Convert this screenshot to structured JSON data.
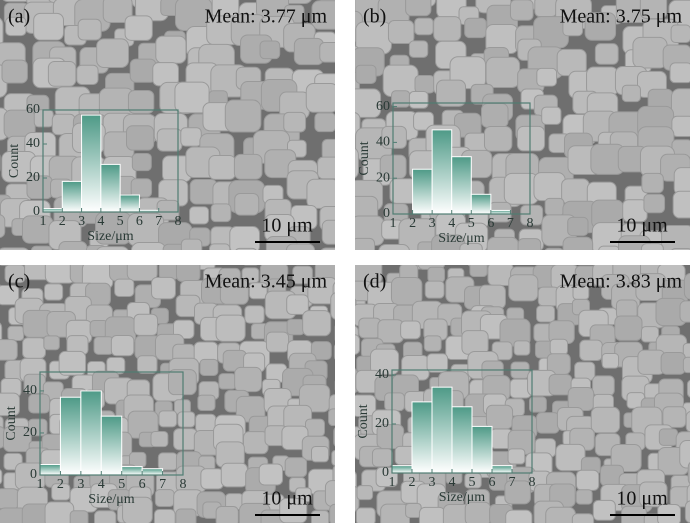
{
  "chart_data": [
    {
      "type": "histogram",
      "label": "(a)",
      "title": "Mean: 3.77 μm",
      "scale_bar": "10 μm",
      "xlabel": "Size/μm",
      "ylabel": "Count",
      "bins": [
        1,
        2,
        3,
        4,
        5,
        6,
        7,
        8
      ],
      "values": [
        2,
        18,
        57,
        28,
        10,
        1,
        0
      ],
      "color": "#4e9a87",
      "xlim": [
        1,
        8
      ],
      "ylim": [
        0,
        60
      ],
      "xticks": [
        1,
        2,
        3,
        4,
        5,
        6,
        7,
        8
      ],
      "yticks": [
        0,
        20,
        40,
        60
      ]
    },
    {
      "type": "histogram",
      "label": "(b)",
      "title": "Mean: 3.75 μm",
      "scale_bar": "10 μm",
      "xlabel": "Size/μm",
      "ylabel": "Count",
      "bins": [
        1,
        2,
        3,
        4,
        5,
        6,
        7,
        8
      ],
      "values": [
        0,
        25,
        47,
        32,
        11,
        2,
        0
      ],
      "color": "#4e9a87",
      "xlim": [
        1,
        8
      ],
      "ylim": [
        0,
        62
      ],
      "xticks": [
        1,
        2,
        3,
        4,
        5,
        6,
        7,
        8
      ],
      "yticks": [
        0,
        20,
        40,
        60
      ]
    },
    {
      "type": "histogram",
      "label": "(c)",
      "title": "Mean: 3.45  μm",
      "scale_bar": "10 μm",
      "xlabel": "Size/μm",
      "ylabel": "Count",
      "bins": [
        1,
        2,
        3,
        4,
        5,
        6,
        7,
        8
      ],
      "values": [
        5,
        37,
        40,
        28,
        4,
        3,
        0
      ],
      "color": "#4e9a87",
      "xlim": [
        1,
        8
      ],
      "ylim": [
        0,
        49
      ],
      "xticks": [
        1,
        2,
        3,
        4,
        5,
        6,
        7,
        8
      ],
      "yticks": [
        0,
        20,
        40
      ]
    },
    {
      "type": "histogram",
      "label": "(d)",
      "title": "Mean: 3.83 μm",
      "scale_bar": "10 μm",
      "xlabel": "Size/μm",
      "ylabel": "Count",
      "bins": [
        1,
        2,
        3,
        4,
        5,
        6,
        7,
        8
      ],
      "values": [
        3,
        29,
        35,
        27,
        19,
        3,
        0
      ],
      "color": "#4e9a87",
      "xlim": [
        1,
        8
      ],
      "ylim": [
        0,
        42
      ],
      "xticks": [
        1,
        2,
        3,
        4,
        5,
        6,
        7,
        8
      ],
      "yticks": [
        0,
        20,
        40
      ]
    }
  ]
}
